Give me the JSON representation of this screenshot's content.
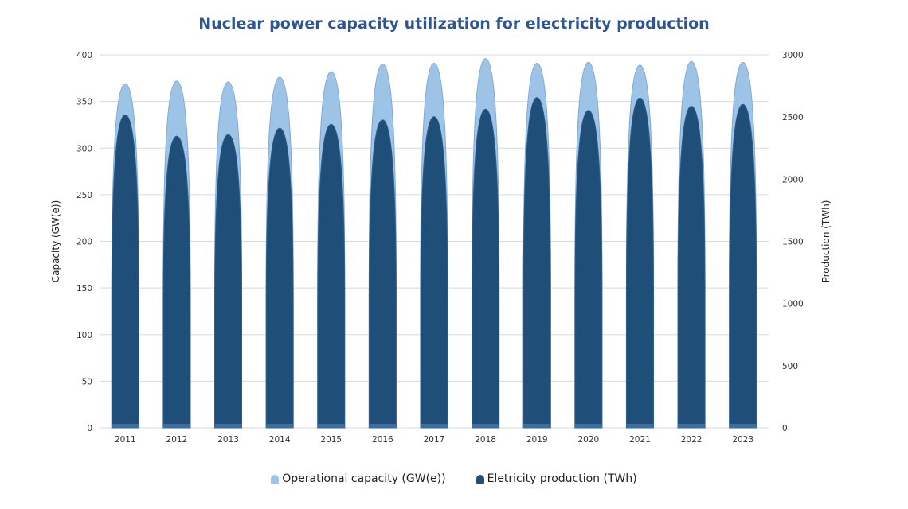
{
  "chart_data": {
    "type": "bar",
    "title": "Nuclear power capacity utilization for electricity production",
    "categories": [
      "2011",
      "2012",
      "2013",
      "2014",
      "2015",
      "2016",
      "2017",
      "2018",
      "2019",
      "2020",
      "2021",
      "2022",
      "2023"
    ],
    "series": [
      {
        "name": "Operational capacity (GW(e))",
        "axis": "left",
        "color": "#9dc3e6",
        "values": [
          369,
          372,
          371,
          376,
          382,
          390,
          391,
          396,
          391,
          392,
          389,
          393,
          392
        ]
      },
      {
        "name": "Eletricity production (TWh)",
        "axis": "right",
        "color": "#1f4e79",
        "values": [
          2518,
          2346,
          2359,
          2410,
          2441,
          2477,
          2503,
          2563,
          2657,
          2553,
          2653,
          2587,
          2602
        ]
      }
    ],
    "ylabel": "Capacity  (GW(e))",
    "ylabel_right": "Production  (TWh)",
    "ylim": [
      0,
      400
    ],
    "ylim_right": [
      0,
      3000
    ],
    "yticks": [
      0,
      50,
      100,
      150,
      200,
      250,
      300,
      350,
      400
    ],
    "yticks_right": [
      0,
      500,
      1000,
      1500,
      2000,
      2500,
      3000
    ],
    "grid": true,
    "legend_position": "bottom"
  }
}
